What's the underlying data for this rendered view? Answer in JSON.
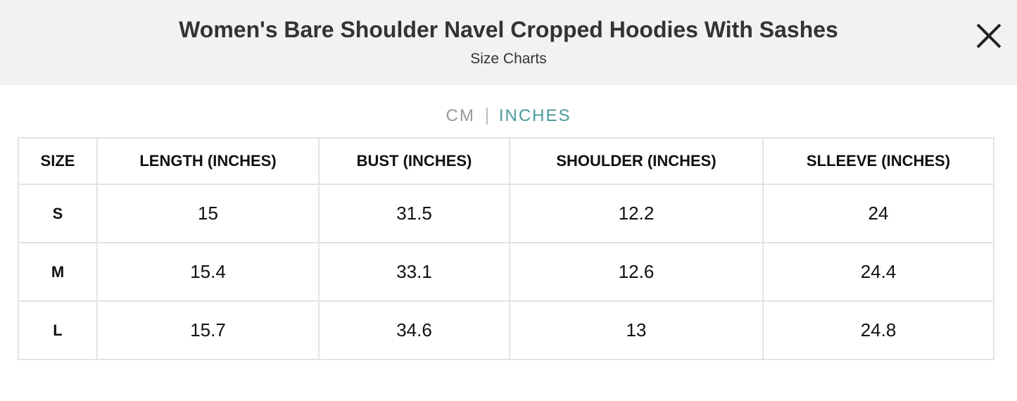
{
  "header": {
    "title": "Women's Bare Shoulder Navel Cropped Hoodies With Sashes",
    "subtitle": "Size Charts"
  },
  "units": {
    "options": [
      "CM",
      "INCHES"
    ],
    "selected": 1
  },
  "table": {
    "columns": [
      "SIZE",
      "LENGTH (INCHES)",
      "BUST (INCHES)",
      "SHOULDER (INCHES)",
      "SLLEEVE (INCHES)"
    ],
    "rows": [
      [
        "S",
        15,
        31.5,
        12.2,
        24
      ],
      [
        "M",
        15.4,
        33.1,
        12.6,
        24.4
      ],
      [
        "L",
        15.7,
        34.6,
        13,
        24.8
      ]
    ]
  }
}
